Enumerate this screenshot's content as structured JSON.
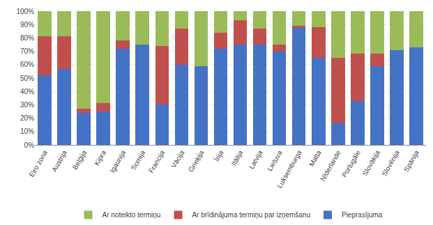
{
  "chart_data": {
    "type": "bar",
    "stacked": true,
    "categories": [
      "Eiro zona",
      "Austrija",
      "Beļģija",
      "Kipra",
      "Igaunija",
      "Somija",
      "Francija",
      "Vācija",
      "Grieķija",
      "Īrija",
      "Itālija",
      "Latvija",
      "Lietuva",
      "Luksemburga",
      "Malta",
      "Nīderlande",
      "Portugāle",
      "Slovākija",
      "Slovēnija",
      "Spānija"
    ],
    "series": [
      {
        "name": "Pieprasījuma",
        "color": "#4472C4",
        "values": [
          52,
          57,
          24,
          25,
          72,
          75,
          30,
          60,
          59,
          72,
          75,
          75,
          70,
          88,
          65,
          16,
          33,
          59,
          71,
          73
        ]
      },
      {
        "name": "Ar brīdinājuma termiņu par izņemšanu",
        "color": "#C0504D",
        "values": [
          29,
          24,
          3,
          6,
          6,
          0,
          44,
          27,
          0,
          12,
          18,
          12,
          5,
          1,
          23,
          49,
          35,
          9,
          0,
          0
        ]
      },
      {
        "name": "Ar noteikto termiņu",
        "color": "#9BBB59",
        "values": [
          19,
          19,
          73,
          69,
          22,
          25,
          26,
          13,
          41,
          16,
          7,
          13,
          25,
          11,
          12,
          35,
          32,
          32,
          29,
          27
        ]
      }
    ],
    "ylim": [
      0,
      100
    ],
    "yticks": [
      {
        "value": 0,
        "label": "0%"
      },
      {
        "value": 10,
        "label": "10%"
      },
      {
        "value": 20,
        "label": "20%"
      },
      {
        "value": 30,
        "label": "30%"
      },
      {
        "value": 40,
        "label": "40%"
      },
      {
        "value": 50,
        "label": "50%"
      },
      {
        "value": 60,
        "label": "60%"
      },
      {
        "value": 70,
        "label": "70%"
      },
      {
        "value": 80,
        "label": "80%"
      },
      {
        "value": 90,
        "label": "90%"
      },
      {
        "value": 100,
        "label": "100%"
      }
    ],
    "grid": true,
    "legend": "bottom"
  }
}
